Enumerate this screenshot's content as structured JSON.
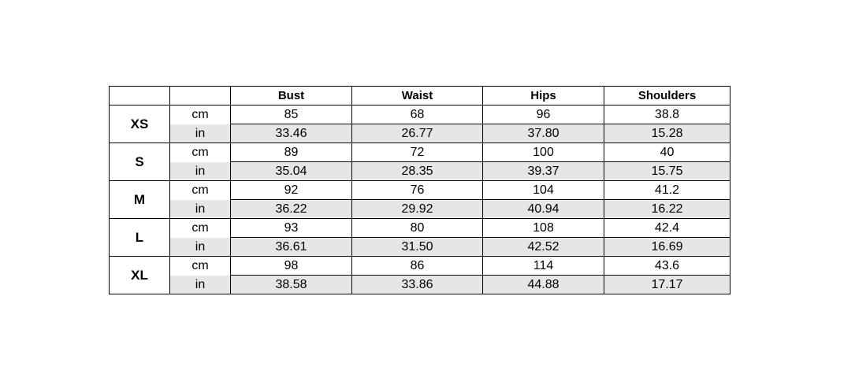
{
  "table": {
    "headers": [
      "",
      "",
      "Bust",
      "Waist",
      "Hips",
      "Shoulders"
    ],
    "rows": [
      {
        "size": "XS",
        "cm": {
          "unit": "cm",
          "values": [
            "85",
            "68",
            "96",
            "38.8"
          ]
        },
        "in": {
          "unit": "in",
          "values": [
            "33.46",
            "26.77",
            "37.80",
            "15.28"
          ]
        }
      },
      {
        "size": "S",
        "cm": {
          "unit": "cm",
          "values": [
            "89",
            "72",
            "100",
            "40"
          ]
        },
        "in": {
          "unit": "in",
          "values": [
            "35.04",
            "28.35",
            "39.37",
            "15.75"
          ]
        }
      },
      {
        "size": "M",
        "cm": {
          "unit": "cm",
          "values": [
            "92",
            "76",
            "104",
            "41.2"
          ]
        },
        "in": {
          "unit": "in",
          "values": [
            "36.22",
            "29.92",
            "40.94",
            "16.22"
          ]
        }
      },
      {
        "size": "L",
        "cm": {
          "unit": "cm",
          "values": [
            "93",
            "80",
            "108",
            "42.4"
          ]
        },
        "in": {
          "unit": "in",
          "values": [
            "36.61",
            "31.50",
            "42.52",
            "16.69"
          ]
        }
      },
      {
        "size": "XL",
        "cm": {
          "unit": "cm",
          "values": [
            "98",
            "86",
            "114",
            "43.6"
          ]
        },
        "in": {
          "unit": "in",
          "values": [
            "38.58",
            "33.86",
            "44.88",
            "17.17"
          ]
        }
      }
    ]
  },
  "colors": {
    "inch_row_fill": "#e6e6e6",
    "border": "#000000"
  }
}
